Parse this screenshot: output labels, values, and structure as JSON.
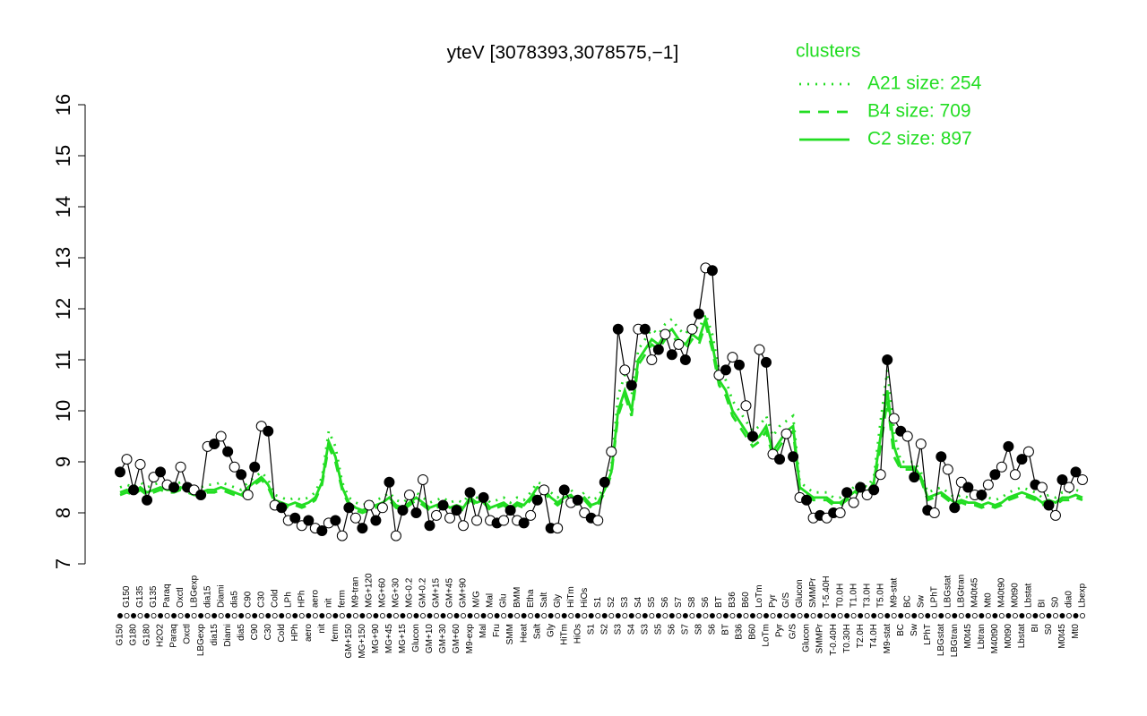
{
  "chart_data": {
    "type": "line",
    "title": "yteV [3078393,3078575,−1]",
    "legend_title": "clusters",
    "legend": "top-right",
    "ylim": [
      7,
      16
    ],
    "yticks": [
      7,
      8,
      9,
      10,
      11,
      12,
      13,
      14,
      15,
      16
    ],
    "color": "#000000",
    "categories": [
      "G150",
      "G150",
      "G180",
      "G135",
      "G180",
      "G135",
      "H2O2",
      "Paraq",
      "Paraq",
      "Oxctl",
      "Oxctl",
      "LBGexp",
      "LBGexp",
      "dia15",
      "dia15",
      "Diami",
      "Diami",
      "dia5",
      "dia5",
      "C90",
      "C90",
      "C30",
      "C30",
      "Cold",
      "Cold",
      "LPh",
      "HPh",
      "HPh",
      "aero",
      "aero",
      "nit",
      "nit",
      "ferm",
      "ferm",
      "GM+150",
      "M9-tran",
      "MG+150",
      "MG+120",
      "MG+90",
      "MG+60",
      "MG+45",
      "MG+30",
      "MG+15",
      "MG-0.2",
      "Glucon",
      "GM-0.2",
      "GM+10",
      "GM+15",
      "GM+30",
      "GM+45",
      "GM+60",
      "GM+90",
      "M9-exp",
      "M/G",
      "Mal",
      "Mal",
      "Fru",
      "Glu",
      "SMM",
      "BMM",
      "Heat",
      "Etha",
      "Salt",
      "Salt",
      "Gly",
      "Gly",
      "HiTm",
      "HiTm",
      "HiOs",
      "HiOs",
      "S1",
      "S1",
      "S2",
      "S2",
      "S3",
      "S3",
      "S4",
      "S4",
      "S3",
      "S5",
      "S5",
      "S6",
      "S6",
      "S7",
      "S7",
      "S8",
      "S8",
      "S6",
      "S6",
      "BT",
      "BT",
      "B36",
      "B36",
      "B60",
      "B60",
      "LoTm",
      "LoTm",
      "Pyr",
      "Pyr",
      "G/S",
      "G/S",
      "Glucon",
      "Glucon",
      "SMMPr",
      "SMMPr",
      "T-5.40H",
      "T-0.40H",
      "T0.0H",
      "T0.30H",
      "T1.0H",
      "T2.0H",
      "T3.0H",
      "T4.0H",
      "T5.0H",
      "M9-stat",
      "M9-stat",
      "BC",
      "BC",
      "Sw",
      "Sw",
      "LPhT",
      "LPhT",
      "LBGstat",
      "LBGstat",
      "LBGtran",
      "LBGtran",
      "M0t45",
      "M40t45",
      "Lbtran",
      "Mt0",
      "M40t90",
      "M40t90",
      "M0t90",
      "M0t90",
      "Lbstat",
      "Lbstat",
      "BI",
      "BI",
      "S0",
      "S0",
      "M0t45",
      "dia0",
      "Mt0",
      "Lbexp"
    ],
    "values": [
      8.8,
      9.05,
      8.45,
      8.95,
      8.25,
      8.7,
      8.8,
      8.55,
      8.5,
      8.9,
      8.5,
      8.45,
      8.35,
      9.3,
      9.35,
      9.5,
      9.2,
      8.9,
      8.75,
      8.35,
      8.9,
      9.7,
      9.6,
      8.15,
      8.1,
      7.85,
      7.9,
      7.75,
      7.85,
      7.7,
      7.65,
      7.8,
      7.85,
      7.55,
      8.1,
      7.9,
      7.7,
      8.15,
      7.85,
      8.1,
      8.6,
      7.55,
      8.05,
      8.35,
      8.0,
      8.65,
      7.75,
      7.95,
      8.15,
      7.9,
      8.05,
      7.75,
      8.4,
      7.85,
      8.3,
      7.85,
      7.8,
      7.85,
      8.05,
      7.85,
      7.8,
      7.95,
      8.25,
      8.45,
      7.7,
      7.7,
      8.45,
      8.2,
      8.25,
      8.0,
      7.9,
      7.85,
      8.6,
      9.2,
      11.6,
      10.8,
      10.5,
      11.6,
      11.6,
      11.0,
      11.2,
      11.5,
      11.1,
      11.3,
      11.0,
      11.6,
      11.9,
      12.8,
      12.75,
      10.7,
      10.8,
      11.05,
      10.9,
      10.1,
      9.5,
      11.2,
      10.95,
      9.15,
      9.05,
      9.55,
      9.1,
      8.3,
      8.25,
      7.9,
      7.95,
      7.9,
      8.0,
      8.0,
      8.4,
      8.2,
      8.5,
      8.35,
      8.45,
      8.75,
      11.0,
      9.85,
      9.6,
      9.5,
      8.7,
      9.35,
      8.05,
      8.0,
      9.1,
      8.85,
      8.1,
      8.6,
      8.5,
      8.35,
      8.35,
      8.55,
      8.75,
      8.9,
      9.3,
      8.75,
      9.05,
      9.2,
      8.55,
      8.5,
      8.15,
      7.95,
      8.65,
      8.5,
      8.8,
      8.65
    ],
    "series": [
      {
        "name": "A21 size: 254",
        "color": "#22dd22",
        "dash": "dotted",
        "values": [
          8.5,
          8.55,
          8.5,
          8.6,
          8.5,
          8.55,
          8.6,
          8.55,
          8.55,
          8.6,
          8.55,
          8.5,
          8.5,
          8.55,
          8.55,
          8.6,
          8.55,
          8.5,
          8.45,
          8.6,
          8.7,
          8.8,
          8.65,
          8.35,
          8.3,
          8.25,
          8.3,
          8.25,
          8.3,
          8.4,
          8.7,
          9.6,
          9.3,
          8.6,
          8.3,
          8.2,
          8.15,
          8.2,
          8.25,
          8.3,
          8.4,
          8.25,
          8.2,
          8.3,
          8.4,
          8.3,
          8.2,
          8.25,
          8.3,
          8.2,
          8.25,
          8.2,
          8.4,
          8.3,
          8.35,
          8.2,
          8.25,
          8.3,
          8.2,
          8.3,
          8.25,
          8.4,
          8.6,
          8.55,
          8.4,
          8.3,
          8.4,
          8.45,
          8.3,
          8.4,
          8.25,
          8.3,
          8.55,
          8.9,
          10.3,
          10.7,
          10.3,
          11.2,
          11.4,
          11.6,
          11.5,
          11.7,
          11.8,
          11.6,
          11.5,
          11.7,
          11.6,
          11.9,
          11.5,
          10.8,
          10.6,
          10.2,
          10.0,
          9.8,
          9.6,
          9.7,
          9.9,
          9.5,
          9.7,
          9.8,
          9.9,
          8.6,
          8.5,
          8.4,
          8.4,
          8.4,
          8.3,
          8.3,
          8.4,
          8.5,
          8.6,
          8.5,
          8.7,
          9.8,
          10.8,
          9.6,
          9.0,
          9.0,
          9.0,
          8.8,
          8.4,
          8.45,
          8.5,
          8.4,
          8.3,
          8.35,
          8.3,
          8.3,
          8.25,
          8.3,
          8.25,
          8.3,
          8.4,
          8.45,
          8.5,
          8.45,
          8.4,
          8.3,
          8.35,
          8.3,
          8.4,
          8.4,
          8.45,
          8.4
        ]
      },
      {
        "name": "B4 size: 709",
        "color": "#22dd22",
        "dash": "dashed",
        "values": [
          8.35,
          8.4,
          8.35,
          8.45,
          8.35,
          8.4,
          8.45,
          8.4,
          8.4,
          8.45,
          8.4,
          8.35,
          8.35,
          8.4,
          8.4,
          8.45,
          8.4,
          8.35,
          8.3,
          8.45,
          8.55,
          8.65,
          8.5,
          8.2,
          8.15,
          8.1,
          8.15,
          8.1,
          8.15,
          8.25,
          8.55,
          9.3,
          9.0,
          8.45,
          8.15,
          8.05,
          8.0,
          8.05,
          8.1,
          8.15,
          8.25,
          8.1,
          8.05,
          8.15,
          8.25,
          8.15,
          8.05,
          8.1,
          8.15,
          8.05,
          8.1,
          8.05,
          8.25,
          8.15,
          8.2,
          8.05,
          8.1,
          8.15,
          8.05,
          8.15,
          8.1,
          8.25,
          8.45,
          8.4,
          8.25,
          8.15,
          8.25,
          8.3,
          8.15,
          8.25,
          8.1,
          8.15,
          8.4,
          8.75,
          9.9,
          10.3,
          9.9,
          10.9,
          11.1,
          11.3,
          11.2,
          11.4,
          11.5,
          11.3,
          11.2,
          11.4,
          11.3,
          11.7,
          11.2,
          10.5,
          10.3,
          9.9,
          9.7,
          9.5,
          9.3,
          9.4,
          9.6,
          9.1,
          9.3,
          9.5,
          9.6,
          8.45,
          8.35,
          8.25,
          8.25,
          8.25,
          8.15,
          8.15,
          8.25,
          8.35,
          8.45,
          8.35,
          8.55,
          9.3,
          10.2,
          9.1,
          8.85,
          8.85,
          8.85,
          8.65,
          8.25,
          8.3,
          8.35,
          8.25,
          8.15,
          8.2,
          8.15,
          8.15,
          8.1,
          8.15,
          8.1,
          8.15,
          8.25,
          8.3,
          8.35,
          8.3,
          8.25,
          8.15,
          8.2,
          8.15,
          8.25,
          8.25,
          8.3,
          8.25
        ]
      },
      {
        "name": "C2 size: 897",
        "color": "#22dd22",
        "dash": "solid",
        "values": [
          8.4,
          8.45,
          8.4,
          8.5,
          8.4,
          8.45,
          8.5,
          8.45,
          8.45,
          8.5,
          8.45,
          8.4,
          8.4,
          8.45,
          8.45,
          8.5,
          8.45,
          8.4,
          8.35,
          8.5,
          8.6,
          8.7,
          8.55,
          8.25,
          8.2,
          8.15,
          8.2,
          8.15,
          8.2,
          8.3,
          8.6,
          9.4,
          9.1,
          8.5,
          8.2,
          8.1,
          8.05,
          8.1,
          8.15,
          8.2,
          8.3,
          8.15,
          8.1,
          8.2,
          8.3,
          8.2,
          8.1,
          8.15,
          8.2,
          8.1,
          8.15,
          8.1,
          8.3,
          8.2,
          8.25,
          8.1,
          8.15,
          8.2,
          8.1,
          8.2,
          8.15,
          8.3,
          8.5,
          8.45,
          8.3,
          8.2,
          8.3,
          8.35,
          8.2,
          8.3,
          8.15,
          8.2,
          8.45,
          8.8,
          10.0,
          10.4,
          10.0,
          11.0,
          11.2,
          11.4,
          11.3,
          11.5,
          11.6,
          11.4,
          11.3,
          11.5,
          11.4,
          11.8,
          11.3,
          10.6,
          10.4,
          10.0,
          9.8,
          9.6,
          9.4,
          9.5,
          9.7,
          9.2,
          9.4,
          9.6,
          9.7,
          8.5,
          8.4,
          8.3,
          8.3,
          8.3,
          8.2,
          8.2,
          8.3,
          8.4,
          8.5,
          8.4,
          8.6,
          9.5,
          10.4,
          9.3,
          8.9,
          8.9,
          8.9,
          8.7,
          8.3,
          8.35,
          8.4,
          8.3,
          8.2,
          8.25,
          8.2,
          8.2,
          8.15,
          8.2,
          8.15,
          8.2,
          8.3,
          8.35,
          8.4,
          8.35,
          8.3,
          8.2,
          8.25,
          8.2,
          8.3,
          8.3,
          8.35,
          8.3
        ]
      }
    ]
  }
}
